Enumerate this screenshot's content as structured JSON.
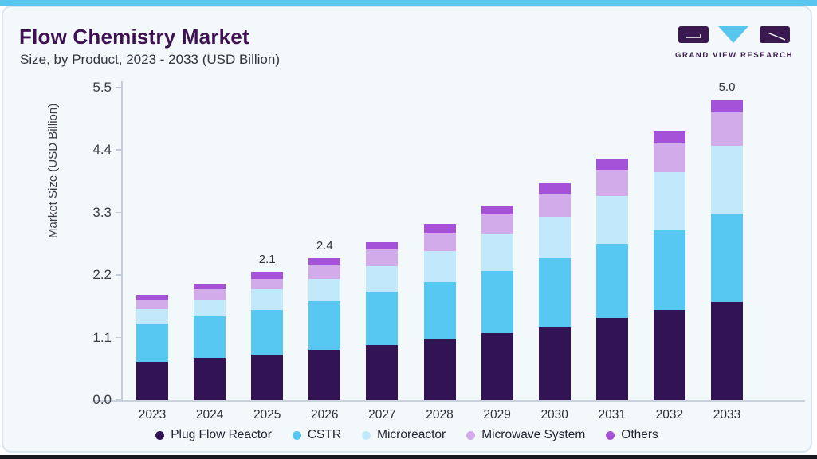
{
  "header": {
    "title": "Flow Chemistry Market",
    "subtitle": "Size, by Product, 2023 - 2033 (USD Billion)"
  },
  "brand": {
    "name": "GRAND VIEW RESEARCH"
  },
  "colors": {
    "top_accent": "#58c6ef",
    "card_background": "#f3f8fb",
    "card_border": "#dbe5ee",
    "title_text": "#3d1152",
    "axis_line": "#c3cdd7",
    "tick_text": "#3c3c46",
    "bottom_edge": "#17171f"
  },
  "chart_data": {
    "type": "bar",
    "stacked": true,
    "title": "Flow Chemistry Market",
    "subtitle": "Size, by Product, 2023 - 2033 (USD Billion)",
    "ylabel": "Market Size (USD Billion)",
    "xlabel": "",
    "ylim": [
      0,
      5.5
    ],
    "yticks": [
      0.0,
      1.1,
      2.2,
      3.3,
      4.4,
      5.5
    ],
    "grid": false,
    "legend_position": "bottom",
    "categories": [
      "2023",
      "2024",
      "2025",
      "2026",
      "2027",
      "2028",
      "2029",
      "2030",
      "2031",
      "2032",
      "2033"
    ],
    "series": [
      {
        "name": "Plug Flow Reactor",
        "color": "#321353",
        "values": [
          0.64,
          0.7,
          0.76,
          0.83,
          0.92,
          1.02,
          1.12,
          1.22,
          1.37,
          1.5,
          1.63
        ]
      },
      {
        "name": "CSTR",
        "color": "#57c8f2",
        "values": [
          0.63,
          0.69,
          0.74,
          0.81,
          0.88,
          0.94,
          1.03,
          1.14,
          1.23,
          1.33,
          1.48
        ]
      },
      {
        "name": "Microreactor",
        "color": "#c1e9fb",
        "values": [
          0.24,
          0.28,
          0.34,
          0.38,
          0.43,
          0.52,
          0.61,
          0.69,
          0.8,
          0.96,
          1.12
        ]
      },
      {
        "name": "Microwave System",
        "color": "#d2abeb",
        "values": [
          0.16,
          0.17,
          0.18,
          0.23,
          0.27,
          0.29,
          0.33,
          0.38,
          0.44,
          0.5,
          0.57
        ]
      },
      {
        "name": "Others",
        "color": "#a551d8",
        "values": [
          0.08,
          0.1,
          0.11,
          0.11,
          0.12,
          0.16,
          0.14,
          0.18,
          0.18,
          0.18,
          0.2
        ]
      }
    ],
    "bar_labels": {
      "2025": "2.1",
      "2026": "2.4",
      "2033": "5.0"
    }
  }
}
